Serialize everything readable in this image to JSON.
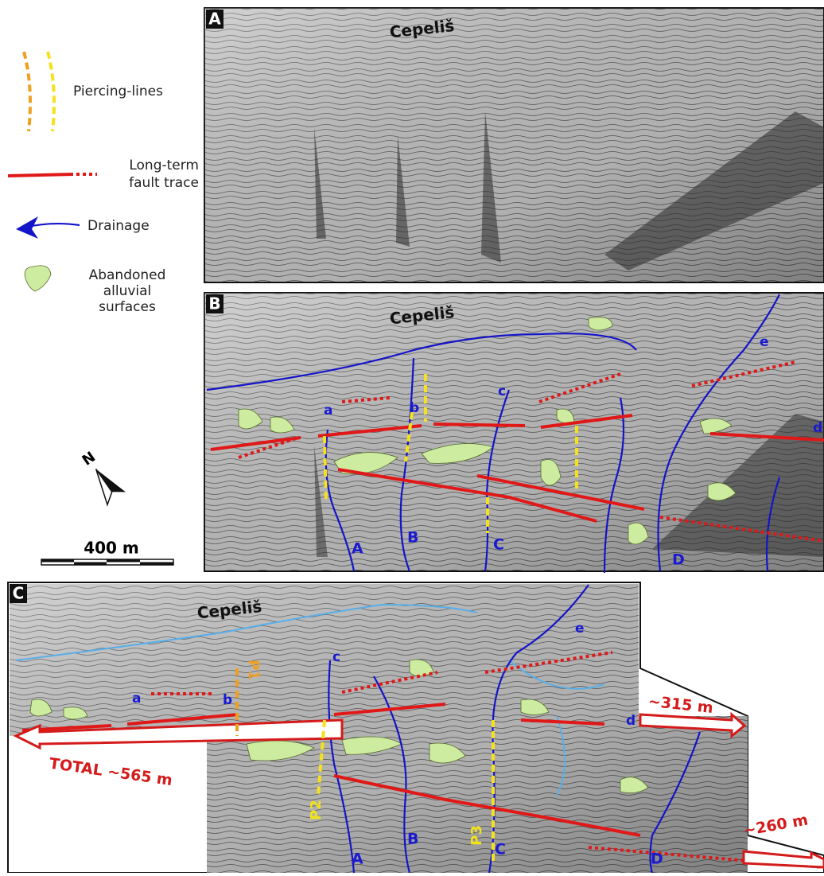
{
  "legend": {
    "piercing_lines": "Piercing-lines",
    "fault_trace": [
      "Long-term",
      "fault trace"
    ],
    "drainage": "Drainage",
    "alluvial": [
      "Abandoned",
      "alluvial",
      "surfaces"
    ]
  },
  "north": "N",
  "scale": "400 m",
  "panels": [
    {
      "label": "A",
      "place": "Cepeliš"
    },
    {
      "label": "B",
      "place": "Cepeliš",
      "streams": [
        "a",
        "b",
        "c",
        "d",
        "e"
      ],
      "rivers": [
        "A",
        "B",
        "C",
        "D"
      ]
    },
    {
      "label": "C",
      "place": "Cepeliš",
      "streams": [
        "a",
        "b",
        "c",
        "d",
        "e"
      ],
      "rivers": [
        "A",
        "B",
        "C",
        "D"
      ],
      "piercing": [
        "P1",
        "P2",
        "P3"
      ],
      "offsets": [
        "~315 m",
        "TOTAL ~565 m",
        "~260 m"
      ]
    }
  ]
}
